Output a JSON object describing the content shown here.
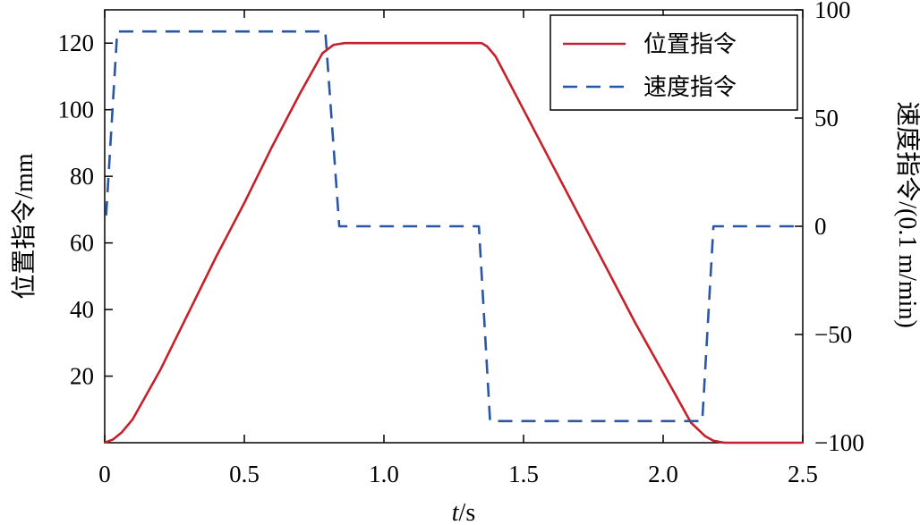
{
  "chart_data": {
    "type": "line",
    "x": {
      "label_italic": "t",
      "label_rest": "/s",
      "lim": [
        0,
        2.5
      ],
      "ticks": [
        0,
        0.5,
        1.0,
        1.5,
        2.0,
        2.5
      ],
      "tick_labels": [
        "0",
        "0.5",
        "1.0",
        "1.5",
        "2.0",
        "2.5"
      ]
    },
    "y_left": {
      "label": "位置指令/mm",
      "lim": [
        0,
        130
      ],
      "ticks": [
        20,
        40,
        60,
        80,
        100,
        120
      ],
      "tick_labels": [
        "20",
        "40",
        "60",
        "80",
        "100",
        "120"
      ]
    },
    "y_right": {
      "label": "速度指令/(0.1 m/min)",
      "lim": [
        -100,
        100
      ],
      "ticks": [
        100,
        50,
        0,
        -50,
        -100
      ],
      "tick_labels": [
        "100",
        "50",
        "0",
        "−50",
        "−100"
      ]
    },
    "legend": {
      "placement": "top-right",
      "entries": [
        "位置指令",
        "速度指令"
      ]
    },
    "series": [
      {
        "name": "位置指令",
        "axis": "left",
        "color": "#c8202a",
        "style": "solid",
        "points": [
          [
            0,
            0
          ],
          [
            0.03,
            1
          ],
          [
            0.06,
            3
          ],
          [
            0.1,
            7
          ],
          [
            0.2,
            22
          ],
          [
            0.3,
            39
          ],
          [
            0.4,
            56
          ],
          [
            0.5,
            72
          ],
          [
            0.6,
            89
          ],
          [
            0.7,
            105
          ],
          [
            0.78,
            117
          ],
          [
            0.82,
            119.5
          ],
          [
            0.86,
            120
          ],
          [
            1.0,
            120
          ],
          [
            1.35,
            120
          ],
          [
            1.37,
            119
          ],
          [
            1.4,
            116
          ],
          [
            1.5,
            100
          ],
          [
            1.6,
            84
          ],
          [
            1.7,
            68
          ],
          [
            1.8,
            52
          ],
          [
            1.9,
            36
          ],
          [
            2.0,
            21
          ],
          [
            2.1,
            6
          ],
          [
            2.15,
            2
          ],
          [
            2.18,
            0.6
          ],
          [
            2.22,
            0
          ],
          [
            2.5,
            0
          ]
        ]
      },
      {
        "name": "速度指令",
        "axis": "right",
        "color": "#2a56a8",
        "style": "dashed",
        "points": [
          [
            0.005,
            5
          ],
          [
            0.045,
            90
          ],
          [
            0.79,
            90
          ],
          [
            0.84,
            0
          ],
          [
            1.34,
            0
          ],
          [
            1.38,
            -90
          ],
          [
            2.14,
            -90
          ],
          [
            2.18,
            0
          ],
          [
            2.5,
            0
          ]
        ]
      }
    ]
  }
}
